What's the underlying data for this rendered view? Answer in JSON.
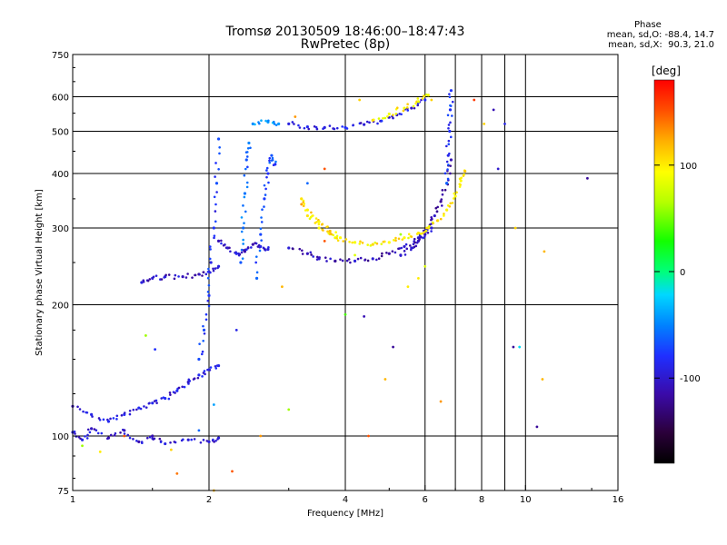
{
  "header": {
    "title_line1": "Tromsø 20130509 18:46:00–18:47:43",
    "title_line2": "RwPretec (8p)"
  },
  "phase_info": {
    "heading": "Phase",
    "line1": "mean, sd,O: -88.4, 14.7",
    "line2": "mean, sd,X:  90.3, 21.0"
  },
  "colorbar": {
    "label": "[deg]",
    "ticks": [
      "100",
      "0",
      "-100"
    ],
    "tick_values": [
      100,
      0,
      -100
    ],
    "range": [
      -180,
      180
    ]
  },
  "chart_data": {
    "type": "scatter",
    "xlabel": "Frequency [MHz]",
    "ylabel": "Stationary phase Virtual Height [km]",
    "x_scale": "log",
    "y_scale": "log",
    "xlim": [
      1,
      16
    ],
    "ylim": [
      75,
      750
    ],
    "x_ticks": [
      1,
      2,
      4,
      6,
      8,
      10,
      16
    ],
    "x_tick_labels": [
      "1",
      "2",
      "4",
      "6",
      "8",
      "10",
      "16"
    ],
    "x_grid": [
      2,
      4,
      6,
      8,
      10
    ],
    "x_minor_grid": [
      7,
      9
    ],
    "y_ticks": [
      75,
      100,
      200,
      300,
      400,
      500,
      600,
      750
    ],
    "y_tick_labels": [
      "75",
      "100",
      "200",
      "300",
      "400",
      "500",
      "600",
      "750"
    ],
    "y_grid": [
      100,
      200,
      300,
      400,
      500,
      600
    ],
    "grid": true,
    "traces": [
      {
        "name": "o-trace-low-segment",
        "phase": -95,
        "points": [
          [
            1.0,
            117
          ],
          [
            1.1,
            112
          ],
          [
            1.2,
            108
          ],
          [
            1.3,
            112
          ],
          [
            1.4,
            116
          ],
          [
            1.5,
            119
          ],
          [
            1.6,
            122
          ],
          [
            1.7,
            127
          ],
          [
            1.8,
            133
          ],
          [
            1.9,
            138
          ],
          [
            2.0,
            142
          ],
          [
            2.1,
            145
          ]
        ]
      },
      {
        "name": "o-trace-branch-230",
        "phase": -105,
        "points": [
          [
            1.42,
            225
          ],
          [
            1.5,
            230
          ],
          [
            1.6,
            232
          ],
          [
            1.75,
            232
          ],
          [
            1.9,
            235
          ],
          [
            2.0,
            238
          ],
          [
            2.1,
            245
          ]
        ]
      },
      {
        "name": "o-trace-F-cusp",
        "phase": -80,
        "points": [
          [
            1.9,
            150
          ],
          [
            1.95,
            175
          ],
          [
            2.0,
            210
          ],
          [
            2.02,
            250
          ],
          [
            2.05,
            300
          ],
          [
            2.08,
            380
          ],
          [
            2.1,
            480
          ]
        ]
      },
      {
        "name": "spread-F-2.2",
        "phase": -100,
        "points": [
          [
            2.1,
            280
          ],
          [
            2.2,
            270
          ],
          [
            2.3,
            262
          ],
          [
            2.4,
            265
          ],
          [
            2.5,
            275
          ],
          [
            2.6,
            272
          ],
          [
            2.7,
            268
          ]
        ]
      },
      {
        "name": "o-trace-2.6-spike",
        "phase": -70,
        "points": [
          [
            2.55,
            230
          ],
          [
            2.6,
            290
          ],
          [
            2.65,
            350
          ],
          [
            2.7,
            400
          ],
          [
            2.75,
            440
          ],
          [
            2.8,
            420
          ]
        ]
      },
      {
        "name": "o-trace-2.4-vertical",
        "phase": -60,
        "points": [
          [
            2.35,
            250
          ],
          [
            2.38,
            300
          ],
          [
            2.4,
            360
          ],
          [
            2.42,
            430
          ],
          [
            2.45,
            470
          ]
        ]
      },
      {
        "name": "F-o-main",
        "phase": -110,
        "points": [
          [
            3.0,
            270
          ],
          [
            3.3,
            262
          ],
          [
            3.5,
            255
          ],
          [
            3.8,
            252
          ],
          [
            4.2,
            252
          ],
          [
            4.6,
            255
          ],
          [
            5.0,
            262
          ],
          [
            5.4,
            272
          ],
          [
            5.8,
            285
          ],
          [
            6.1,
            300
          ],
          [
            6.3,
            320
          ],
          [
            6.5,
            345
          ],
          [
            6.7,
            380
          ],
          [
            6.85,
            430
          ]
        ]
      },
      {
        "name": "F-o-upper-arm",
        "phase": -105,
        "points": [
          [
            5.3,
            260
          ],
          [
            5.6,
            270
          ],
          [
            5.8,
            280
          ],
          [
            6.0,
            290
          ],
          [
            6.2,
            300
          ]
        ]
      },
      {
        "name": "F-o-vertical-6.7",
        "phase": -75,
        "points": [
          [
            6.7,
            380
          ],
          [
            6.75,
            440
          ],
          [
            6.8,
            500
          ],
          [
            6.82,
            560
          ],
          [
            6.85,
            620
          ]
        ]
      },
      {
        "name": "F-x-trace",
        "phase": 100,
        "points": [
          [
            3.3,
            320
          ],
          [
            3.5,
            300
          ],
          [
            3.8,
            285
          ],
          [
            4.2,
            278
          ],
          [
            4.6,
            275
          ],
          [
            5.0,
            278
          ],
          [
            5.4,
            285
          ],
          [
            5.8,
            292
          ],
          [
            6.1,
            300
          ],
          [
            6.4,
            312
          ],
          [
            6.7,
            330
          ],
          [
            7.0,
            355
          ],
          [
            7.2,
            385
          ],
          [
            7.35,
            405
          ]
        ]
      },
      {
        "name": "F-x-low",
        "phase": 105,
        "points": [
          [
            3.2,
            350
          ],
          [
            3.3,
            330
          ],
          [
            3.5,
            310
          ],
          [
            3.7,
            295
          ],
          [
            3.9,
            285
          ]
        ]
      },
      {
        "name": "second-hop-o",
        "phase": -95,
        "points": [
          [
            3.0,
            520
          ],
          [
            3.3,
            512
          ],
          [
            3.6,
            510
          ],
          [
            4.0,
            510
          ],
          [
            4.4,
            518
          ],
          [
            4.8,
            528
          ],
          [
            5.2,
            545
          ],
          [
            5.6,
            565
          ],
          [
            6.0,
            590
          ]
        ]
      },
      {
        "name": "second-hop-x",
        "phase": 95,
        "points": [
          [
            4.6,
            530
          ],
          [
            5.0,
            548
          ],
          [
            5.4,
            565
          ],
          [
            5.8,
            585
          ],
          [
            6.1,
            605
          ]
        ]
      },
      {
        "name": "second-hop-cyan",
        "phase": -40,
        "points": [
          [
            2.5,
            520
          ],
          [
            2.7,
            525
          ],
          [
            2.85,
            520
          ]
        ]
      },
      {
        "name": "E-region",
        "phase": -100,
        "points": [
          [
            1.0,
            102
          ],
          [
            1.05,
            98
          ],
          [
            1.1,
            104
          ],
          [
            1.2,
            99
          ],
          [
            1.3,
            103
          ],
          [
            1.4,
            97
          ],
          [
            1.5,
            100
          ],
          [
            1.6,
            96
          ],
          [
            1.8,
            98
          ],
          [
            2.0,
            97
          ],
          [
            2.1,
            99
          ]
        ]
      }
    ],
    "scatter_noise": [
      {
        "x": 1.9,
        "y": 103,
        "phase": -60
      },
      {
        "x": 2.05,
        "y": 118,
        "phase": -40
      },
      {
        "x": 1.45,
        "y": 170,
        "phase": 60
      },
      {
        "x": 1.52,
        "y": 158,
        "phase": -80
      },
      {
        "x": 2.3,
        "y": 175,
        "phase": -90
      },
      {
        "x": 3.0,
        "y": 115,
        "phase": 60
      },
      {
        "x": 3.2,
        "y": 340,
        "phase": 130
      },
      {
        "x": 3.6,
        "y": 280,
        "phase": 150
      },
      {
        "x": 4.0,
        "y": 190,
        "phase": 40
      },
      {
        "x": 4.4,
        "y": 188,
        "phase": -110
      },
      {
        "x": 4.9,
        "y": 135,
        "phase": 120
      },
      {
        "x": 5.1,
        "y": 160,
        "phase": -120
      },
      {
        "x": 5.3,
        "y": 290,
        "phase": 60
      },
      {
        "x": 4.2,
        "y": 260,
        "phase": 80
      },
      {
        "x": 5.5,
        "y": 220,
        "phase": 100
      },
      {
        "x": 6.0,
        "y": 245,
        "phase": 80
      },
      {
        "x": 7.7,
        "y": 590,
        "phase": 160
      },
      {
        "x": 8.5,
        "y": 560,
        "phase": -110
      },
      {
        "x": 8.7,
        "y": 410,
        "phase": -100
      },
      {
        "x": 9.0,
        "y": 520,
        "phase": -90
      },
      {
        "x": 9.4,
        "y": 160,
        "phase": -120
      },
      {
        "x": 9.7,
        "y": 160,
        "phase": -20
      },
      {
        "x": 10.6,
        "y": 105,
        "phase": -120
      },
      {
        "x": 11.0,
        "y": 265,
        "phase": 120
      },
      {
        "x": 10.9,
        "y": 135,
        "phase": 120
      },
      {
        "x": 13.7,
        "y": 390,
        "phase": -120
      },
      {
        "x": 1.65,
        "y": 93,
        "phase": 110
      },
      {
        "x": 1.3,
        "y": 100,
        "phase": 150
      },
      {
        "x": 2.25,
        "y": 83,
        "phase": 150
      },
      {
        "x": 2.05,
        "y": 75,
        "phase": 120
      },
      {
        "x": 1.7,
        "y": 82,
        "phase": 140
      },
      {
        "x": 1.05,
        "y": 95,
        "phase": 60
      },
      {
        "x": 1.15,
        "y": 92,
        "phase": 100
      },
      {
        "x": 2.6,
        "y": 100,
        "phase": 130
      },
      {
        "x": 3.1,
        "y": 540,
        "phase": 130
      },
      {
        "x": 3.6,
        "y": 410,
        "phase": 150
      },
      {
        "x": 4.3,
        "y": 590,
        "phase": 110
      },
      {
        "x": 6.2,
        "y": 590,
        "phase": 110
      },
      {
        "x": 8.1,
        "y": 520,
        "phase": 110
      },
      {
        "x": 9.5,
        "y": 300,
        "phase": 110
      },
      {
        "x": 2.9,
        "y": 220,
        "phase": 120
      },
      {
        "x": 3.3,
        "y": 380,
        "phase": -60
      },
      {
        "x": 5.8,
        "y": 230,
        "phase": 100
      },
      {
        "x": 6.5,
        "y": 120,
        "phase": 130
      },
      {
        "x": 4.5,
        "y": 100,
        "phase": 150
      }
    ]
  }
}
